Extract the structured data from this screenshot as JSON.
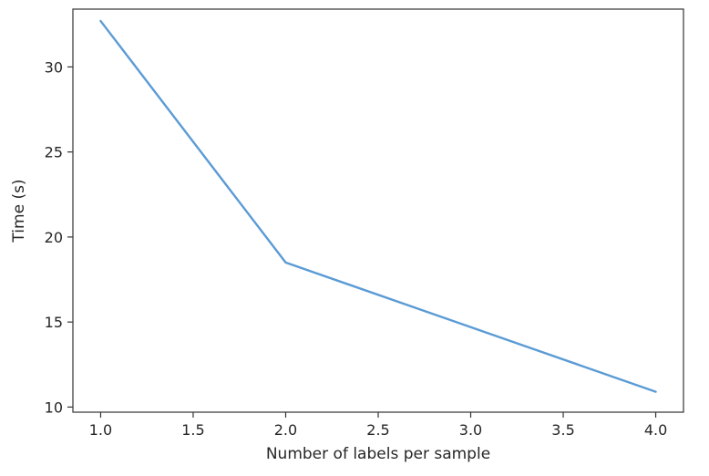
{
  "chart_data": {
    "type": "line",
    "title": "",
    "xlabel": "Number of labels per sample",
    "ylabel": "Time (s)",
    "xlim": [
      0.85,
      4.15
    ],
    "ylim": [
      9.7,
      33.4
    ],
    "xticks": [
      1.0,
      1.5,
      2.0,
      2.5,
      3.0,
      3.5,
      4.0
    ],
    "xtick_labels": [
      "1.0",
      "1.5",
      "2.0",
      "2.5",
      "3.0",
      "3.5",
      "4.0"
    ],
    "yticks": [
      10,
      15,
      20,
      25,
      30
    ],
    "ytick_labels": [
      "10",
      "15",
      "20",
      "25",
      "30"
    ],
    "grid": false,
    "series": [
      {
        "color": "#5b9bd5",
        "x": [
          1,
          2,
          3,
          4
        ],
        "y": [
          32.7,
          18.5,
          14.7,
          10.9
        ]
      }
    ]
  }
}
